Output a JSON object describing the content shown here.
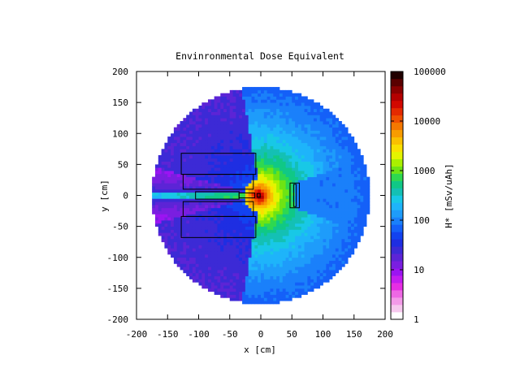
{
  "chart_data": {
    "type": "heatmap",
    "title": "Envinronmental Dose Equivalent",
    "xlabel": "x [cm]",
    "ylabel": "y [cm]",
    "xlim": [
      -200,
      200
    ],
    "ylim": [
      -200,
      200
    ],
    "xticks": [
      "-200",
      "-150",
      "-100",
      "-50",
      "0",
      "50",
      "100",
      "150",
      "200"
    ],
    "yticks": [
      "200",
      "150",
      "100",
      "50",
      "0",
      "-50",
      "-100",
      "-150",
      "-200"
    ],
    "grid": false,
    "domain": {
      "shape": "disk",
      "center": [
        0,
        0
      ],
      "radius": 175
    },
    "colorbar": {
      "label": "H* [mSv/uAh]",
      "scale": "log",
      "range": [
        1,
        100000
      ],
      "ticks": [
        "100000",
        "10000",
        "1000",
        "100",
        "10",
        "1"
      ],
      "colors": [
        "#ffffff",
        "#f6c8ee",
        "#f39ae8",
        "#ee68e4",
        "#e62ee4",
        "#c31cf0",
        "#9b14f2",
        "#7a1ee0",
        "#5c24d6",
        "#3c2ad6",
        "#1e2ee2",
        "#1242f0",
        "#1460f8",
        "#1a80fa",
        "#1e9cfa",
        "#1eb4fa",
        "#18c8e6",
        "#14c0b4",
        "#10c886",
        "#2ed850",
        "#6ee414",
        "#aaf000",
        "#e4f400",
        "#fae000",
        "#fac000",
        "#f89c00",
        "#f47800",
        "#f05000",
        "#e42a00",
        "#d20800",
        "#b40000",
        "#8a0000",
        "#5a0000",
        "#200000"
      ]
    },
    "source_peak": {
      "x": -3,
      "y": 0,
      "value": 50000
    },
    "features": [
      {
        "type": "shadow-sector",
        "from_deg": 100,
        "to_deg": 165,
        "value": 12,
        "note": "upper-left shielded sector"
      },
      {
        "type": "shadow-sector",
        "from_deg": 195,
        "to_deg": 260,
        "value": 12,
        "note": "lower-left shielded sector"
      },
      {
        "type": "beam-channel",
        "y_range": [
          -6,
          6
        ],
        "x_range": [
          -175,
          -5
        ],
        "value": 800
      },
      {
        "type": "sector",
        "from_deg": -20,
        "to_deg": 20,
        "value": 90,
        "note": "forward sector"
      }
    ],
    "geometry": [
      {
        "kind": "rect",
        "x": [
          -128,
          -8
        ],
        "y": [
          34,
          68
        ]
      },
      {
        "kind": "rect",
        "x": [
          -125,
          -12
        ],
        "y": [
          10,
          34
        ]
      },
      {
        "kind": "rect",
        "x": [
          -125,
          -12
        ],
        "y": [
          -34,
          -10
        ]
      },
      {
        "kind": "rect",
        "x": [
          -128,
          -8
        ],
        "y": [
          -68,
          -34
        ]
      },
      {
        "kind": "rect",
        "x": [
          -105,
          -35
        ],
        "y": [
          -6,
          6
        ]
      },
      {
        "kind": "rect",
        "x": [
          -35,
          -10
        ],
        "y": [
          -4,
          4
        ]
      },
      {
        "kind": "rect",
        "x": [
          -6,
          -1
        ],
        "y": [
          -3,
          3
        ]
      },
      {
        "kind": "rect",
        "x": [
          47,
          62
        ],
        "y": [
          -20,
          20
        ]
      },
      {
        "kind": "rect",
        "x": [
          53,
          57
        ],
        "y": [
          -18,
          18
        ]
      }
    ]
  }
}
